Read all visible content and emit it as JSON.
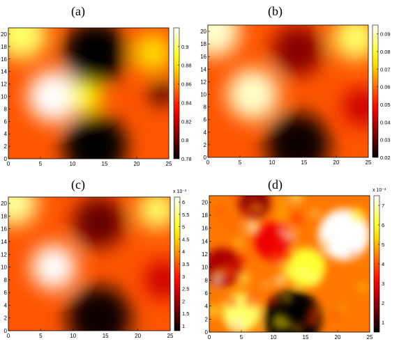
{
  "figure": {
    "panels": [
      {
        "label": "(a)",
        "chart_data": {
          "type": "heatmap",
          "title": "",
          "xlabel": "",
          "ylabel": "",
          "xlim": [
            0,
            25
          ],
          "ylim": [
            0,
            21
          ],
          "xticks": [
            "0",
            "5",
            "10",
            "15",
            "20",
            "25"
          ],
          "yticks": [
            "0",
            "2",
            "4",
            "6",
            "8",
            "10",
            "12",
            "14",
            "16",
            "18",
            "20"
          ],
          "colorbar": {
            "range": [
              0.78,
              0.92
            ],
            "ticks": [
              "0.78",
              "0.8",
              "0.82",
              "0.84",
              "0.86",
              "0.88",
              "0.9"
            ],
            "exponent": ""
          },
          "colormap": "hot",
          "features": [
            {
              "x": 7,
              "y": 10,
              "level": 1.0,
              "radius": 4
            },
            {
              "x": 12,
              "y": 10,
              "level": 0.75,
              "radius": 2.5
            },
            {
              "x": 13.5,
              "y": 17,
              "level": 0.0,
              "radius": 5
            },
            {
              "x": 13.5,
              "y": 2,
              "level": 0.0,
              "radius": 5
            },
            {
              "x": 2,
              "y": 20,
              "level": 0.85,
              "radius": 4
            },
            {
              "x": 22.5,
              "y": 17,
              "level": 0.7,
              "radius": 3
            },
            {
              "x": 24,
              "y": 10.5,
              "level": 0.1,
              "radius": 2
            }
          ]
        }
      },
      {
        "label": "(b)",
        "chart_data": {
          "type": "heatmap",
          "title": "",
          "xlabel": "",
          "ylabel": "",
          "xlim": [
            0,
            25
          ],
          "ylim": [
            0,
            21
          ],
          "xticks": [
            "0",
            "5",
            "10",
            "15",
            "20",
            "25"
          ],
          "yticks": [
            "0",
            "2",
            "4",
            "6",
            "8",
            "10",
            "12",
            "14",
            "16",
            "18",
            "20"
          ],
          "colorbar": {
            "range": [
              0.02,
              0.095
            ],
            "ticks": [
              "0.02",
              "0.03",
              "0.04",
              "0.05",
              "0.06",
              "0.07",
              "0.08",
              "0.09"
            ],
            "exponent": ""
          },
          "colormap": "hot",
          "features": [
            {
              "x": 7,
              "y": 10,
              "level": 0.95,
              "radius": 4
            },
            {
              "x": 1,
              "y": 20,
              "level": 0.95,
              "radius": 4
            },
            {
              "x": 23,
              "y": 19,
              "level": 0.85,
              "radius": 3.5
            },
            {
              "x": 14,
              "y": 17,
              "level": 0.2,
              "radius": 4
            },
            {
              "x": 14,
              "y": 2,
              "level": 0.02,
              "radius": 5
            },
            {
              "x": 24,
              "y": 8,
              "level": 0.3,
              "radius": 3
            }
          ]
        }
      },
      {
        "label": "(c)",
        "chart_data": {
          "type": "heatmap",
          "title": "",
          "xlabel": "",
          "ylabel": "",
          "xlim": [
            0,
            25
          ],
          "ylim": [
            0,
            21
          ],
          "xticks": [
            "0",
            "5",
            "10",
            "15",
            "20",
            "25"
          ],
          "yticks": [
            "0",
            "2",
            "4",
            "6",
            "8",
            "10",
            "12",
            "14",
            "16",
            "18",
            "20"
          ],
          "colorbar": {
            "range": [
              0.0008,
              0.0062
            ],
            "ticks": [
              "1",
              "1.5",
              "2",
              "2.5",
              "3",
              "3.5",
              "4",
              "4.5",
              "5",
              "5.5",
              "6"
            ],
            "exponent": "x 10⁻³"
          },
          "colormap": "hot",
          "features": [
            {
              "x": 7,
              "y": 10,
              "level": 1.0,
              "radius": 3.5
            },
            {
              "x": 1,
              "y": 20,
              "level": 0.9,
              "radius": 3.5
            },
            {
              "x": 23,
              "y": 19,
              "level": 0.85,
              "radius": 3
            },
            {
              "x": 14,
              "y": 17,
              "level": 0.15,
              "radius": 4
            },
            {
              "x": 14,
              "y": 2,
              "level": 0.02,
              "radius": 5
            },
            {
              "x": 24,
              "y": 8,
              "level": 0.3,
              "radius": 3
            }
          ]
        }
      },
      {
        "label": "(d)",
        "chart_data": {
          "type": "heatmap",
          "title": "",
          "xlabel": "",
          "ylabel": "",
          "xlim": [
            0,
            25
          ],
          "ylim": [
            0,
            21
          ],
          "xticks": [
            "0",
            "5",
            "10",
            "15",
            "20",
            "25"
          ],
          "yticks": [
            "0",
            "2",
            "4",
            "6",
            "8",
            "10",
            "12",
            "14",
            "16",
            "18",
            "20"
          ],
          "colorbar": {
            "range": [
              0.0005,
              0.0075
            ],
            "ticks": [
              "1",
              "2",
              "3",
              "4",
              "5",
              "6",
              "7"
            ],
            "exponent": "x 10⁻³"
          },
          "colormap": "hot",
          "features": [
            {
              "x": 13,
              "y": 2,
              "level": 0.0,
              "radius": 4.5
            },
            {
              "x": 21,
              "y": 15,
              "level": 1.0,
              "radius": 4
            },
            {
              "x": 2,
              "y": 10,
              "level": 0.25,
              "radius": 3
            },
            {
              "x": 10,
              "y": 14,
              "level": 0.35,
              "radius": 3
            },
            {
              "x": 5,
              "y": 3,
              "level": 0.85,
              "radius": 3
            },
            {
              "x": 15,
              "y": 10,
              "level": 0.8,
              "radius": 3
            },
            {
              "x": 7,
              "y": 20,
              "level": 0.2,
              "radius": 2.5
            }
          ]
        }
      }
    ]
  }
}
